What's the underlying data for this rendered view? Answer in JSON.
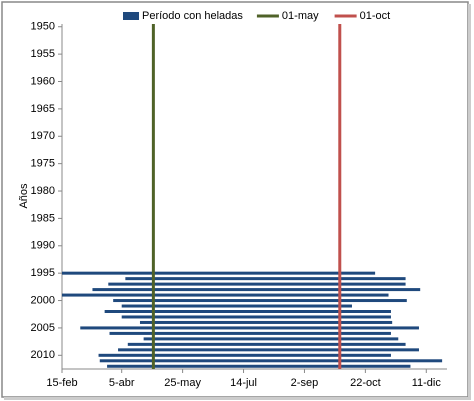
{
  "chart_data": {
    "type": "floating_bar",
    "y_axis_title": "Años",
    "series": [
      {
        "name": "Período con heladas",
        "color": "#1f497d",
        "years": [
          1995,
          1996,
          1997,
          1998,
          1999,
          2000,
          2001,
          2002,
          2003,
          2004,
          2005,
          2006,
          2007,
          2008,
          2009,
          2010,
          2011,
          2012
        ],
        "start": [
          46,
          98,
          84,
          71,
          46,
          88,
          95,
          81,
          95,
          110,
          61,
          85,
          113,
          100,
          92,
          76,
          77,
          83
        ],
        "end": [
          303,
          328,
          328,
          340,
          314,
          329,
          284,
          316,
          316,
          317,
          339,
          316,
          322,
          328,
          339,
          316,
          358,
          332
        ]
      }
    ],
    "reference_lines": [
      {
        "name": "01-may",
        "color": "#4f6228",
        "value": 121
      },
      {
        "name": "01-oct",
        "color": "#c0504d",
        "value": 274
      }
    ],
    "xlim": [
      46,
      362
    ],
    "xticks": [
      {
        "value": 46,
        "label": "15-feb"
      },
      {
        "value": 95,
        "label": "5-abr"
      },
      {
        "value": 145,
        "label": "25-may"
      },
      {
        "value": 195,
        "label": "14-jul"
      },
      {
        "value": 245,
        "label": "2-sep"
      },
      {
        "value": 295,
        "label": "22-oct"
      },
      {
        "value": 345,
        "label": "11-dic"
      }
    ],
    "ylim": [
      1949.5,
      2012.5
    ],
    "y_inverted": true,
    "yticks": [
      1950,
      1955,
      1960,
      1965,
      1970,
      1975,
      1980,
      1985,
      1990,
      1995,
      2000,
      2005,
      2010
    ],
    "legend": "top"
  }
}
